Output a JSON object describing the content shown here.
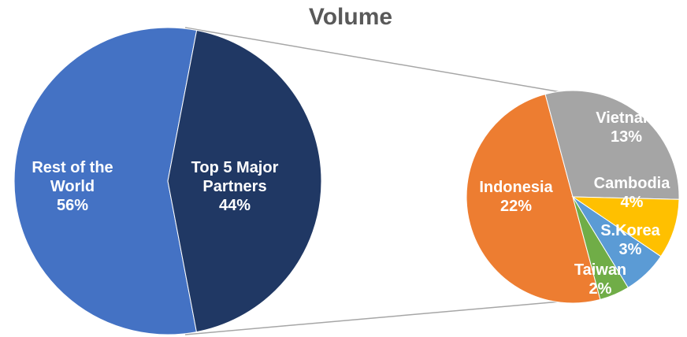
{
  "chart_data": {
    "type": "pie-of-pie",
    "title": "Volume",
    "categories": [
      "Rest of the World",
      "Top 5 Major Partners"
    ],
    "values": [
      56,
      44
    ],
    "value_labels": [
      "56%",
      "44%"
    ],
    "colors": [
      "#4472c4",
      "#203864"
    ],
    "detail": {
      "categories": [
        "Indonesia",
        "Vietnam",
        "Cambodia",
        "S.Korea",
        "Taiwan"
      ],
      "values": [
        22,
        13,
        4,
        3,
        2
      ],
      "value_labels": [
        "22%",
        "13%",
        "4%",
        "3%",
        "2%"
      ],
      "colors": [
        "#ed7d31",
        "#a5a5a5",
        "#ffc000",
        "#5b9bd5",
        "#70ad47"
      ]
    }
  }
}
